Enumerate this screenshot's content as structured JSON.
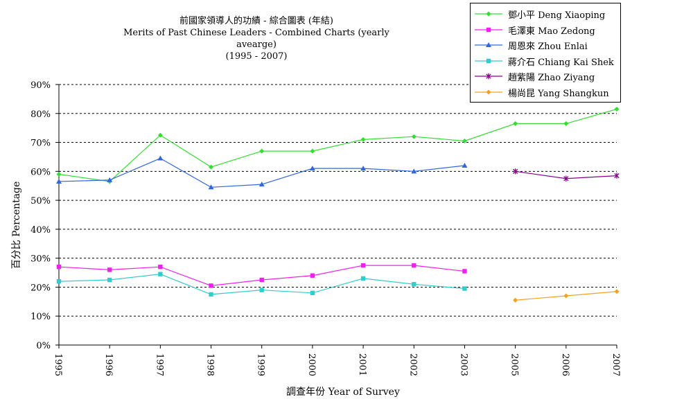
{
  "chart_data": {
    "type": "line",
    "title": "前國家領導人的功績 - 綜合圖表 (年結)",
    "subtitle": "Merits of Past Chinese Leaders - Combined Charts (yearly avearge)",
    "subtitle2": "(1995 - 2007)",
    "xlabel": "調查年份 Year of Survey",
    "ylabel": "百分比 Percentage",
    "categories": [
      "1995",
      "1996",
      "1997",
      "1998",
      "1999",
      "2000",
      "2001",
      "2002",
      "2003",
      "2005",
      "2006",
      "2007"
    ],
    "ylim": [
      0,
      90
    ],
    "yticks": [
      "0%",
      "10%",
      "20%",
      "30%",
      "40%",
      "50%",
      "60%",
      "70%",
      "80%",
      "90%"
    ],
    "grid": "horizontal dashed",
    "legend_position": "top-right",
    "series": [
      {
        "name": "鄧小平 Deng Xiaoping",
        "color": "#33dd33",
        "marker": "diamond",
        "values": [
          59,
          56.5,
          72.5,
          61.5,
          67,
          67,
          71,
          72,
          70.5,
          76.5,
          76.5,
          81.5
        ]
      },
      {
        "name": "毛澤東 Mao Zedong",
        "color": "#ee22ee",
        "marker": "square",
        "values": [
          27,
          26,
          27,
          20.5,
          22.5,
          24,
          27.5,
          27.5,
          25.5,
          null,
          null,
          null
        ]
      },
      {
        "name": "周恩來 Zhou Enlai",
        "color": "#3366dd",
        "marker": "triangle",
        "values": [
          56.5,
          57,
          64.5,
          54.5,
          55.5,
          61,
          61,
          60,
          62,
          null,
          null,
          null
        ]
      },
      {
        "name": "蔣介石 Chiang Kai Shek",
        "color": "#33cccc",
        "marker": "square",
        "values": [
          22,
          22.5,
          24.5,
          17.5,
          19,
          18,
          23,
          21,
          19.5,
          null,
          null,
          null
        ]
      },
      {
        "name": "趙紫陽 Zhao Ziyang",
        "color": "#880088",
        "marker": "star",
        "values": [
          null,
          null,
          null,
          null,
          null,
          null,
          null,
          null,
          null,
          60,
          57.5,
          58.5
        ]
      },
      {
        "name": "楊尚昆 Yang Shangkun",
        "color": "#f5a020",
        "marker": "diamond",
        "values": [
          null,
          null,
          null,
          null,
          null,
          null,
          null,
          null,
          null,
          15.5,
          17,
          18.5
        ]
      }
    ]
  }
}
